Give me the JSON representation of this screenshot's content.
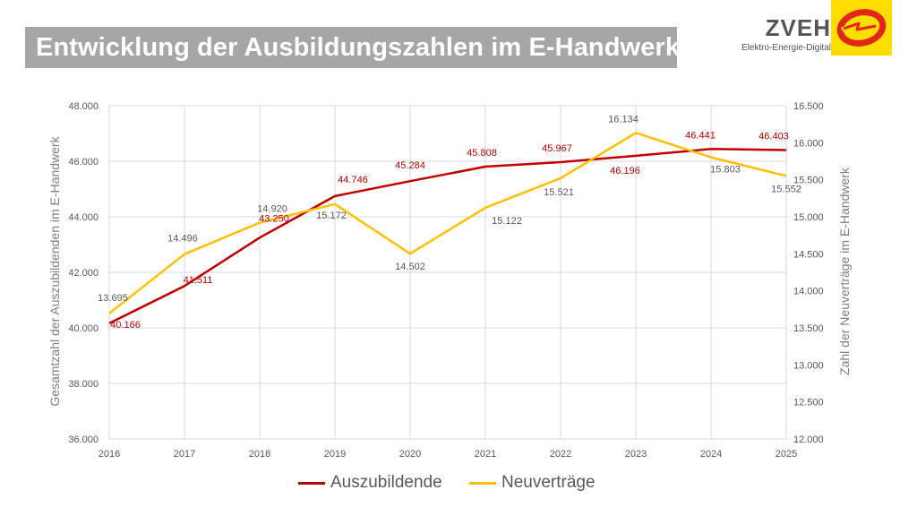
{
  "title": "Entwicklung der Ausbildungszahlen im E-Handwerk",
  "brand": {
    "name": "ZVEH",
    "tagline": "Elektro-Energie-Digital",
    "colors": {
      "logo_background": "#ffdd00",
      "logo_mark": "#e2261a"
    }
  },
  "chart_data": {
    "type": "line",
    "x": [
      "2016",
      "2017",
      "2018",
      "2019",
      "2020",
      "2021",
      "2022",
      "2023",
      "2024",
      "2025"
    ],
    "series": [
      {
        "name": "Auszubildende",
        "axis": "left",
        "color": "#c00000",
        "values": [
          40166,
          41511,
          43250,
          44746,
          45284,
          45808,
          45967,
          46196,
          46441,
          46403
        ],
        "labels": [
          "40.166",
          "41.511",
          "43.250",
          "44.746",
          "45.284",
          "45.808",
          "45.967",
          "46.196",
          "46.441",
          "46.403"
        ]
      },
      {
        "name": "Neuverträge",
        "axis": "right",
        "color": "#ffc000",
        "values": [
          13695,
          14496,
          14920,
          15172,
          14502,
          15122,
          15521,
          16134,
          15803,
          15552
        ],
        "labels": [
          "13.695",
          "14.496",
          "14.920",
          "15.172",
          "14.502",
          "15.122",
          "15.521",
          "16.134",
          "15.803",
          "15.552"
        ]
      }
    ],
    "y_left": {
      "label": "Gesamtzahl der Auszubildenden im E-Handwerk",
      "range": [
        36000,
        48000
      ],
      "ticks": [
        "36.000",
        "38.000",
        "40.000",
        "42.000",
        "44.000",
        "46.000",
        "48.000"
      ]
    },
    "y_right": {
      "label": "Zahl der Neuverträge im E-Handwerk",
      "range": [
        12000,
        16500
      ],
      "ticks": [
        "12.000",
        "12.500",
        "13.000",
        "13.500",
        "14.000",
        "14.500",
        "15.000",
        "15.500",
        "16.000",
        "16.500"
      ]
    },
    "grid": true,
    "legend_position": "bottom"
  }
}
